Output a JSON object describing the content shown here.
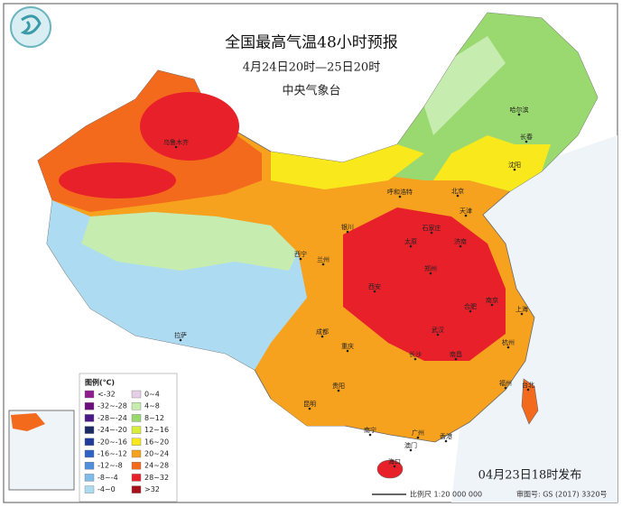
{
  "header": {
    "title": "全国最高气温48小时预报",
    "period": "4月24日20时—25日20时",
    "agency": "中央气象台"
  },
  "legend": {
    "title": "图例(℃)",
    "items": [
      {
        "label": "<-32",
        "color": "#8e1c8e"
      },
      {
        "label": "-32~-28",
        "color": "#6b0f7c"
      },
      {
        "label": "-28~-24",
        "color": "#4c1a88"
      },
      {
        "label": "-24~-20",
        "color": "#1c2a66"
      },
      {
        "label": "-20~-16",
        "color": "#1f3c9c"
      },
      {
        "label": "-16~-12",
        "color": "#2f62c4"
      },
      {
        "label": "-12~-8",
        "color": "#4f90dc"
      },
      {
        "label": "-8~-4",
        "color": "#80bce8"
      },
      {
        "label": "-4~0",
        "color": "#addcf2"
      },
      {
        "label": "0~4",
        "color": "#e6cfe6"
      },
      {
        "label": "4~8",
        "color": "#c6ecb0"
      },
      {
        "label": "8~12",
        "color": "#9ad870"
      },
      {
        "label": "12~16",
        "color": "#d8ee3a"
      },
      {
        "label": "16~20",
        "color": "#f8e81c"
      },
      {
        "label": "20~24",
        "color": "#f7a21e"
      },
      {
        "label": "24~28",
        "color": "#f46a1c"
      },
      {
        "label": "28~32",
        "color": "#e8202a"
      },
      {
        "label": ">32",
        "color": "#a8101a"
      }
    ]
  },
  "cities": [
    "乌鲁木齐",
    "哈尔滨",
    "长春",
    "沈阳",
    "呼和浩特",
    "北京",
    "天津",
    "银川",
    "石家庄",
    "太原",
    "济南",
    "西宁",
    "兰州",
    "郑州",
    "西安",
    "合肥",
    "南京",
    "上海",
    "拉萨",
    "成都",
    "武汉",
    "杭州",
    "重庆",
    "长沙",
    "南昌",
    "贵阳",
    "福州",
    "台北",
    "昆明",
    "南宁",
    "广州",
    "香港",
    "澳门",
    "海口"
  ],
  "footer": {
    "issued": "04月23日18时发布",
    "scale": "比例尺 1:20 000 000",
    "approval": "审图号: GS (2017) 3320号"
  }
}
